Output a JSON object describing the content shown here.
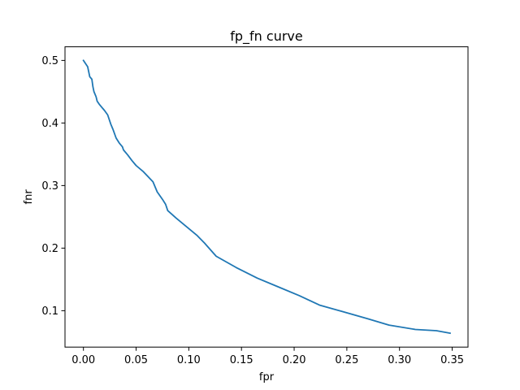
{
  "chart_data": {
    "type": "line",
    "title": "fp_fn curve",
    "xlabel": "fpr",
    "ylabel": "fnr",
    "xlim": [
      -0.0175,
      0.365
    ],
    "ylim": [
      0.0418,
      0.5218
    ],
    "grid": false,
    "x_ticks": [
      0.0,
      0.05,
      0.1,
      0.15,
      0.2,
      0.25,
      0.3,
      0.35
    ],
    "x_tick_labels": [
      "0.00",
      "0.05",
      "0.10",
      "0.15",
      "0.20",
      "0.25",
      "0.30",
      "0.35"
    ],
    "y_ticks": [
      0.1,
      0.2,
      0.3,
      0.4,
      0.5
    ],
    "y_tick_labels": [
      "0.1",
      "0.2",
      "0.3",
      "0.4",
      "0.5"
    ],
    "series": [
      {
        "color": "#1f77b4",
        "x": [
          0.0,
          0.004,
          0.006,
          0.008,
          0.009,
          0.01,
          0.012,
          0.013,
          0.015,
          0.02,
          0.023,
          0.026,
          0.028,
          0.031,
          0.034,
          0.037,
          0.038,
          0.042,
          0.046,
          0.05,
          0.057,
          0.066,
          0.07,
          0.075,
          0.078,
          0.08,
          0.088,
          0.098,
          0.108,
          0.115,
          0.126,
          0.145,
          0.165,
          0.185,
          0.205,
          0.224,
          0.245,
          0.27,
          0.29,
          0.315,
          0.335,
          0.348
        ],
        "y": [
          0.5,
          0.49,
          0.474,
          0.47,
          0.458,
          0.45,
          0.442,
          0.435,
          0.43,
          0.42,
          0.413,
          0.398,
          0.39,
          0.376,
          0.368,
          0.362,
          0.357,
          0.349,
          0.34,
          0.332,
          0.322,
          0.306,
          0.29,
          0.278,
          0.27,
          0.26,
          0.248,
          0.234,
          0.22,
          0.208,
          0.187,
          0.169,
          0.152,
          0.138,
          0.124,
          0.109,
          0.099,
          0.087,
          0.077,
          0.07,
          0.068,
          0.064
        ]
      }
    ]
  }
}
